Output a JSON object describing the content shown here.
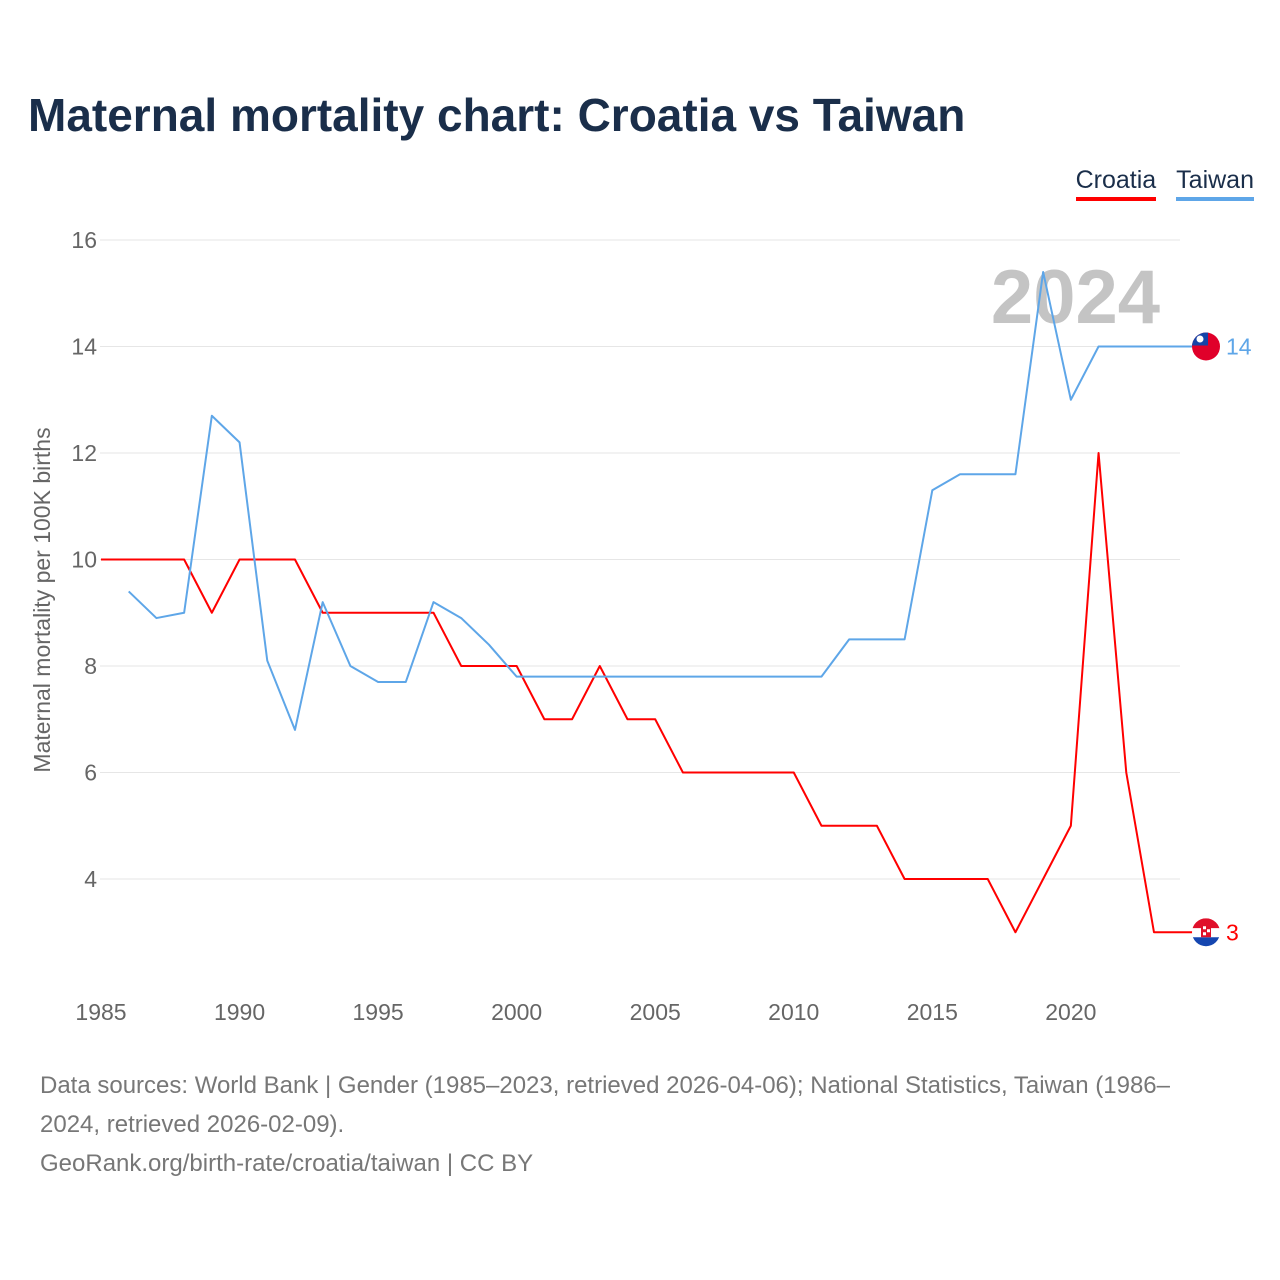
{
  "chart_data": {
    "type": "line",
    "title": "Maternal mortality chart: Croatia vs Taiwan",
    "xlabel": "",
    "ylabel": "Maternal mortality per 100K births",
    "xlim": [
      1985,
      2024
    ],
    "ylim": [
      2,
      16
    ],
    "x_ticks": [
      "1985",
      "1990",
      "1995",
      "2000",
      "2005",
      "2010",
      "2015",
      "2020"
    ],
    "y_ticks": [
      "4",
      "6",
      "8",
      "10",
      "12",
      "14",
      "16"
    ],
    "year_label": "2024",
    "legend_position": "top-right",
    "series": [
      {
        "name": "Croatia",
        "color": "#ff0000",
        "end_label": "3",
        "x": [
          1985,
          1986,
          1987,
          1988,
          1989,
          1990,
          1991,
          1992,
          1993,
          1994,
          1995,
          1996,
          1997,
          1998,
          1999,
          2000,
          2001,
          2002,
          2003,
          2004,
          2005,
          2006,
          2007,
          2008,
          2009,
          2010,
          2011,
          2012,
          2013,
          2014,
          2015,
          2016,
          2017,
          2018,
          2019,
          2020,
          2021,
          2022,
          2023
        ],
        "values": [
          10,
          10,
          10,
          10,
          9,
          10,
          10,
          10,
          9,
          9,
          9,
          9,
          9,
          8,
          8,
          8,
          7,
          7,
          8,
          7,
          7,
          6,
          6,
          6,
          6,
          6,
          5,
          5,
          5,
          4,
          4,
          4,
          4,
          3,
          4,
          5,
          12,
          6,
          3
        ]
      },
      {
        "name": "Taiwan",
        "color": "#5ea6e8",
        "end_label": "14",
        "x": [
          1986,
          1987,
          1988,
          1989,
          1990,
          1991,
          1992,
          1993,
          1994,
          1995,
          1996,
          1997,
          1998,
          1999,
          2000,
          2001,
          2002,
          2003,
          2004,
          2005,
          2006,
          2007,
          2008,
          2009,
          2010,
          2011,
          2012,
          2013,
          2014,
          2015,
          2016,
          2017,
          2018,
          2019,
          2020,
          2021,
          2022,
          2023,
          2024
        ],
        "values": [
          9.4,
          8.9,
          9.0,
          12.7,
          12.2,
          8.1,
          6.8,
          9.2,
          8.0,
          7.7,
          7.7,
          9.2,
          8.9,
          8.4,
          7.8,
          7.8,
          7.8,
          7.8,
          7.8,
          7.8,
          7.8,
          7.8,
          7.8,
          7.8,
          7.8,
          7.8,
          8.5,
          8.5,
          8.5,
          11.3,
          11.6,
          11.6,
          11.6,
          15.4,
          13.0,
          14.0,
          14.0,
          14.0,
          14.0
        ]
      }
    ]
  },
  "footer": {
    "sources": "Data sources: World Bank | Gender (1985–2023, retrieved 2026-04-06); National Statistics, Taiwan (1986–2024, retrieved 2026-02-09).",
    "credit": "GeoRank.org/birth-rate/croatia/taiwan | CC BY"
  }
}
